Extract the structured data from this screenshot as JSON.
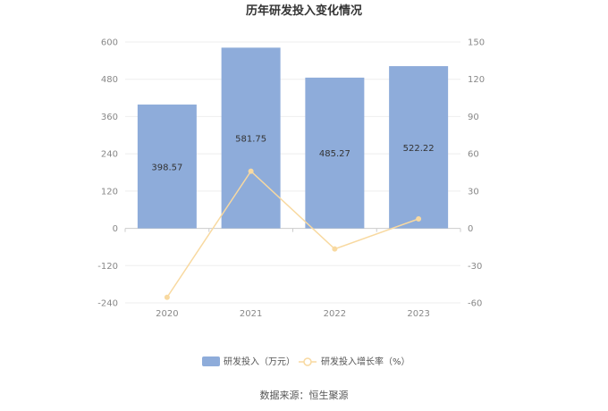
{
  "chart_data": {
    "type": "bar",
    "title": "历年研发投入变化情况",
    "categories": [
      "2020",
      "2021",
      "2022",
      "2023"
    ],
    "series": [
      {
        "name": "研发投入（万元）",
        "type": "bar",
        "axis": "left",
        "values": [
          398.57,
          581.75,
          485.27,
          522.22
        ],
        "labels": [
          "398.57",
          "581.75",
          "485.27",
          "522.22"
        ]
      },
      {
        "name": "研发投入增长率（%）",
        "type": "line",
        "axis": "right",
        "values": [
          -55.5,
          46.0,
          -16.6,
          7.6
        ]
      }
    ],
    "left_axis": {
      "ylim": [
        -240,
        600
      ],
      "ticks": [
        "600",
        "480",
        "360",
        "240",
        "120",
        "0",
        "-120",
        "-240"
      ]
    },
    "right_axis": {
      "ylim": [
        -60,
        150
      ],
      "ticks": [
        "150",
        "120",
        "90",
        "60",
        "30",
        "0",
        "-30",
        "-60"
      ]
    },
    "grid": true,
    "legend_position": "bottom",
    "colors": {
      "bar": "#8eacda",
      "line": "#f8d9a0"
    }
  },
  "source_text": "数据来源：恒生聚源"
}
